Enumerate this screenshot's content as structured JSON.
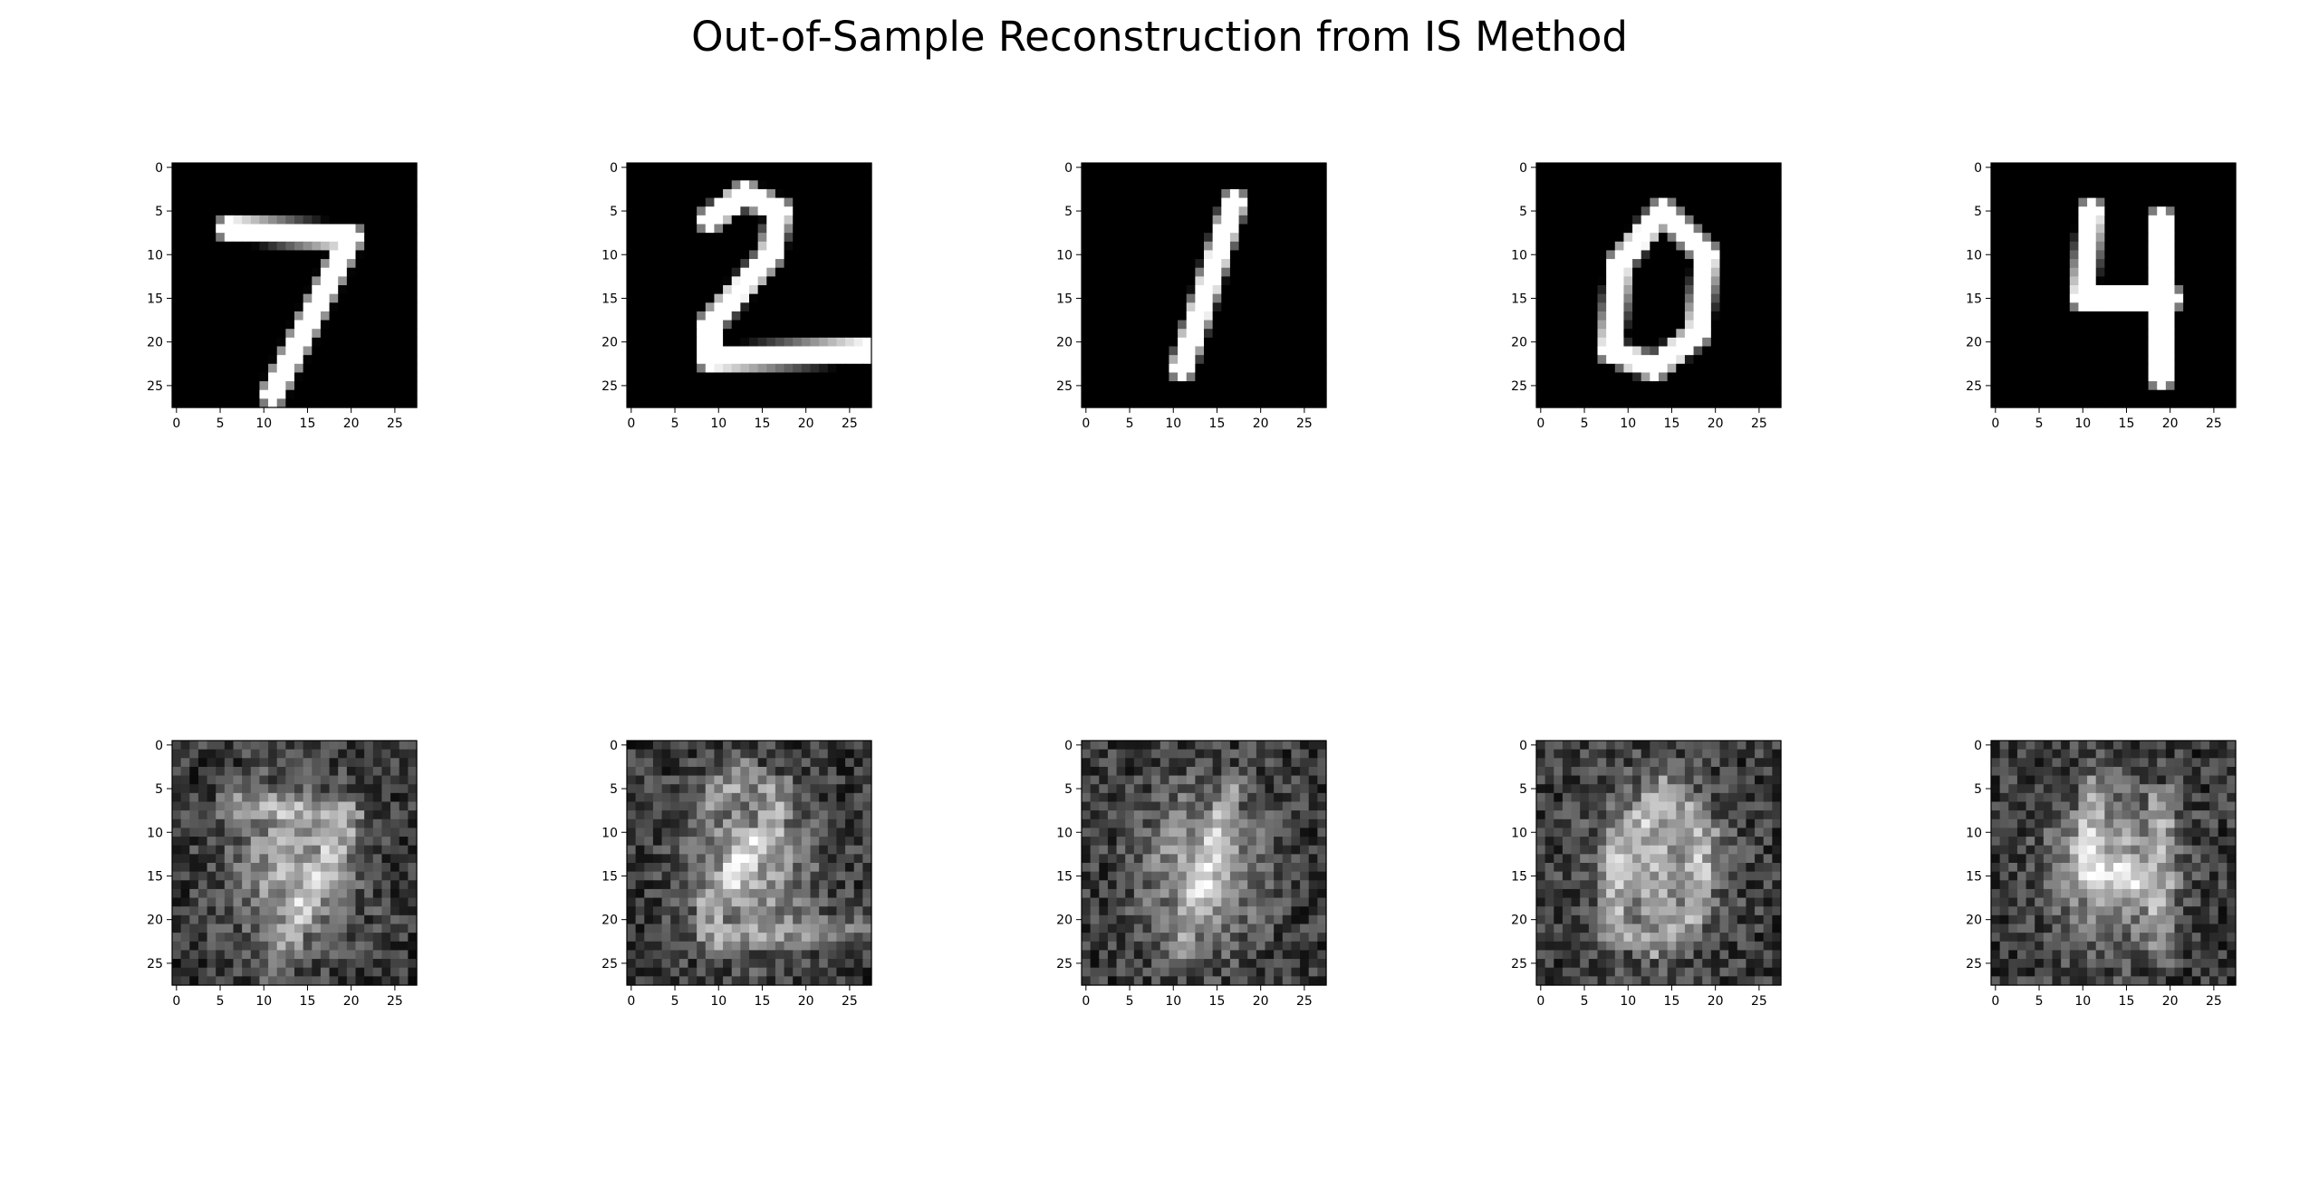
{
  "figure": {
    "title": "Out-of-Sample Reconstruction from IS Method"
  },
  "chart_data": {
    "type": "heatmap",
    "title": "Out-of-Sample Reconstruction from IS Method",
    "layout": "2 rows x 5 columns",
    "colormap": "gray",
    "rows": [
      {
        "row": "original test images",
        "digits_shown": [
          "7",
          "2",
          "1",
          "0",
          "4"
        ]
      },
      {
        "row": "reconstructions",
        "description_of_content": "noisy grayscale blobs roughly resembling each digit"
      }
    ],
    "image_size": [
      28,
      28
    ],
    "xlim": [
      0,
      27
    ],
    "ylim": [
      27,
      0
    ],
    "xticks": [
      0,
      5,
      10,
      15,
      20,
      25
    ],
    "yticks": [
      0,
      5,
      10,
      15,
      20,
      25
    ],
    "xtick_labels": [
      "0",
      "5",
      "10",
      "15",
      "20",
      "25"
    ],
    "ytick_labels": [
      "0",
      "5",
      "10",
      "15",
      "20",
      "25"
    ],
    "grid": false
  }
}
